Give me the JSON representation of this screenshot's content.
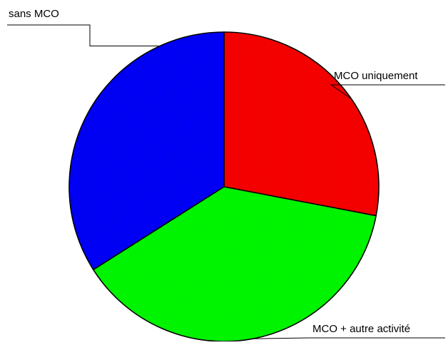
{
  "chart_data": {
    "type": "pie",
    "title": "",
    "start_angle_deg": 0,
    "direction": "clockwise",
    "slices": [
      {
        "label": "MCO uniquement",
        "value": 28,
        "color": "#ff0000"
      },
      {
        "label": "MCO + autre activité",
        "value": 38,
        "color": "#00ff00"
      },
      {
        "label": "sans MCO",
        "value": 34,
        "color": "#0000ff"
      }
    ]
  }
}
